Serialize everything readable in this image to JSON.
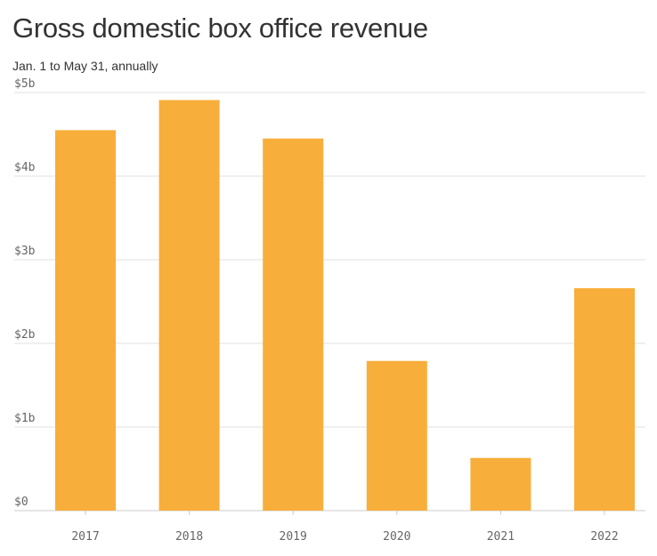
{
  "chart_data": {
    "type": "bar",
    "title": "Gross domestic box office revenue",
    "subtitle": "Jan. 1 to May 31, annually",
    "categories": [
      "2017",
      "2018",
      "2019",
      "2020",
      "2021",
      "2022"
    ],
    "values": [
      4.55,
      4.91,
      4.45,
      1.79,
      0.63,
      2.66
    ],
    "ylim": [
      0,
      5
    ],
    "yticks": [
      0,
      1,
      2,
      3,
      4,
      5
    ],
    "ytick_labels": [
      "$0",
      "$1b",
      "$2b",
      "$3b",
      "$4b",
      "$5b"
    ],
    "xlabel": "",
    "ylabel": "",
    "grid": true,
    "bar_color": "#f8ae3b",
    "grid_color": "#e0e0e0",
    "text_color": "#333333",
    "tick_color": "#666666"
  }
}
